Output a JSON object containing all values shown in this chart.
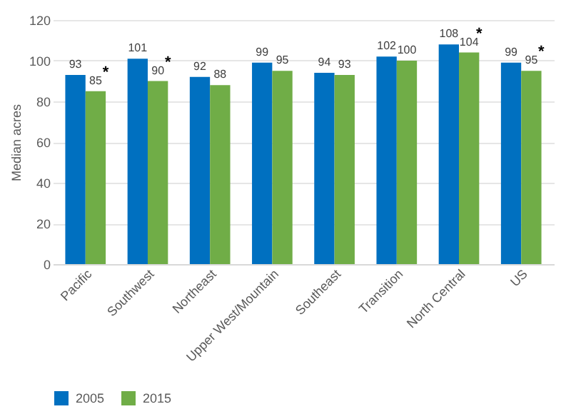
{
  "chart_data": {
    "type": "bar",
    "ylabel": "Median acres",
    "categories": [
      "Pacific",
      "Southwest",
      "Northeast",
      "Upper West/Mountain",
      "Southeast",
      "Transition",
      "North Central",
      "US"
    ],
    "series": [
      {
        "name": "2005",
        "color": "#0070c0",
        "values": [
          93,
          101,
          92,
          99,
          94,
          102,
          108,
          99
        ]
      },
      {
        "name": "2015",
        "color": "#70ad47",
        "values": [
          85,
          90,
          88,
          95,
          93,
          100,
          104,
          95
        ]
      }
    ],
    "ylim": [
      0,
      120
    ],
    "yticks": [
      0,
      20,
      40,
      60,
      80,
      100,
      120
    ],
    "grid": "y",
    "legend": "bottom",
    "data_labels": true,
    "annotations": [
      {
        "text": "*",
        "x": "Pacific",
        "y": 85
      },
      {
        "text": "*",
        "x": "Southwest",
        "y": 90
      },
      {
        "text": "*",
        "x": "North Central",
        "y": 104
      },
      {
        "text": "*",
        "x": "US",
        "y": 95
      }
    ]
  }
}
